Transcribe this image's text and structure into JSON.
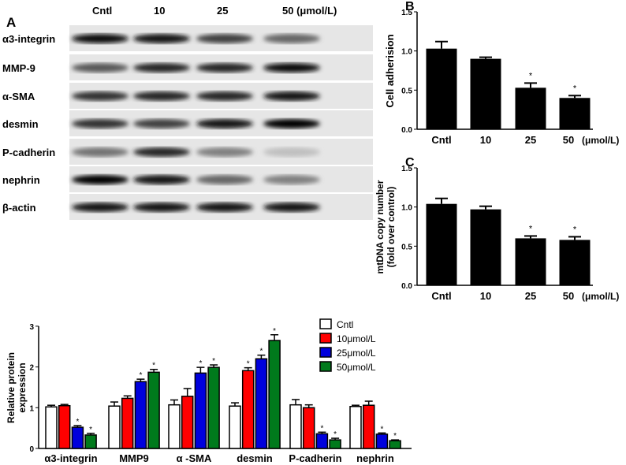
{
  "panel_a": {
    "letter": "A",
    "lane_labels": [
      "Cntl",
      "10",
      "25",
      "50 (μmol/L)"
    ],
    "row_labels": [
      "α3-integrin",
      "MMP-9",
      "α-SMA",
      "desmin",
      "P-cadherin",
      "nephrin",
      "β-actin"
    ]
  },
  "chart_data": [
    {
      "type": "bar",
      "letter": "B",
      "categories": [
        "Cntl",
        "10",
        "25",
        "50"
      ],
      "unit_label": "(μmol/L)",
      "values": [
        1.03,
        0.9,
        0.53,
        0.4
      ],
      "error_upper": [
        1.12,
        0.92,
        0.59,
        0.43
      ],
      "significance": [
        "",
        "",
        "*",
        "*"
      ],
      "ylabel": "Cell adherision",
      "ylim": [
        0,
        1.5
      ],
      "yticks": [
        "0.0",
        "0.5",
        "1.0",
        "1.5"
      ],
      "color": "#000000"
    },
    {
      "type": "bar",
      "letter": "C",
      "categories": [
        "Cntl",
        "10",
        "25",
        "50"
      ],
      "unit_label": "(μmol/L)",
      "values": [
        1.04,
        0.97,
        0.6,
        0.58
      ],
      "error_upper": [
        1.11,
        1.01,
        0.63,
        0.62
      ],
      "significance": [
        "",
        "",
        "*",
        "*"
      ],
      "ylabel": [
        "mtDNA copy number",
        "(fold over control)"
      ],
      "ylim": [
        0,
        1.5
      ],
      "yticks": [
        "0.0",
        "0.5",
        "1.0",
        "1.5"
      ],
      "color": "#000000"
    },
    {
      "type": "bar",
      "categories": [
        "α3-integrin",
        "MMP9",
        "α -SMA",
        "desmin",
        "P-cadherin",
        "nephrin"
      ],
      "ylabel": [
        "Relative protein",
        "expression"
      ],
      "ylim": [
        0,
        3
      ],
      "yticks": [
        "0",
        "1",
        "2",
        "3"
      ],
      "legend": "top-right",
      "series": [
        {
          "name": "Cntl",
          "color": "#ffffff",
          "values": [
            1.02,
            1.04,
            1.07,
            1.04,
            1.07,
            1.03
          ],
          "error_upper": [
            1.06,
            1.14,
            1.19,
            1.12,
            1.2,
            1.06
          ],
          "significance": [
            "",
            "",
            "",
            "",
            "",
            ""
          ]
        },
        {
          "name": "10μmol/L",
          "color": "#ff0000",
          "values": [
            1.05,
            1.23,
            1.28,
            1.91,
            1.0,
            1.06
          ],
          "error_upper": [
            1.08,
            1.29,
            1.47,
            1.98,
            1.07,
            1.16
          ],
          "significance": [
            "",
            "",
            "",
            "*",
            "",
            ""
          ]
        },
        {
          "name": "25μmol/L",
          "color": "#0000dd",
          "values": [
            0.52,
            1.64,
            1.85,
            2.2,
            0.36,
            0.35
          ],
          "error_upper": [
            0.56,
            1.7,
            1.99,
            2.29,
            0.4,
            0.38
          ],
          "significance": [
            "*",
            "*",
            "*",
            "*",
            "*",
            "*"
          ]
        },
        {
          "name": "50μmol/L",
          "color": "#007a1c",
          "values": [
            0.33,
            1.87,
            1.99,
            2.65,
            0.21,
            0.19
          ],
          "error_upper": [
            0.37,
            1.94,
            2.05,
            2.79,
            0.25,
            0.21
          ],
          "significance": [
            "*",
            "*",
            "*",
            "*",
            "*",
            "*"
          ]
        }
      ]
    }
  ]
}
